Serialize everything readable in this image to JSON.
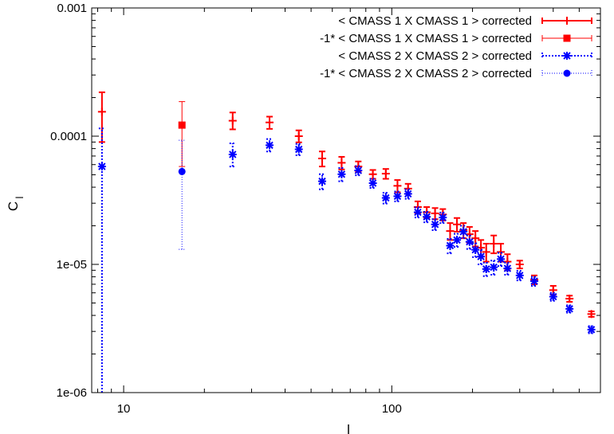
{
  "chart_data": {
    "type": "scatter",
    "title": "",
    "xlabel": "l",
    "ylabel": "C",
    "ylabel_subscript": "l",
    "xscale": "log",
    "yscale": "log",
    "xlim": [
      7.6,
      600
    ],
    "ylim": [
      1e-06,
      0.001
    ],
    "x_ticks": [
      {
        "value": 10,
        "label": "10"
      },
      {
        "value": 100,
        "label": "100"
      }
    ],
    "y_ticks": [
      {
        "value": 1e-06,
        "label": "1e-06"
      },
      {
        "value": 1e-05,
        "label": "1e-05"
      },
      {
        "value": 0.0001,
        "label": "0.0001"
      },
      {
        "value": 0.001,
        "label": "0.001"
      }
    ],
    "legend_position": "top-right",
    "series": [
      {
        "name": "< CMASS 1 X CMASS 1 > corrected",
        "color": "#ff0000",
        "marker": "plus",
        "line": "solid",
        "points": [
          {
            "x": 8.3,
            "y": 0.000155,
            "ylo": 9e-05,
            "yhi": 0.00022
          },
          {
            "x": 25.5,
            "y": 0.000132,
            "ylo": 0.000113,
            "yhi": 0.000153
          },
          {
            "x": 35.0,
            "y": 0.000128,
            "ylo": 0.000114,
            "yhi": 0.000142
          },
          {
            "x": 45.0,
            "y": 0.0001,
            "ylo": 8.95e-05,
            "yhi": 0.000111
          },
          {
            "x": 55.0,
            "y": 6.7e-05,
            "ylo": 5.8e-05,
            "yhi": 7.6e-05
          },
          {
            "x": 65.0,
            "y": 6.2e-05,
            "ylo": 5.5e-05,
            "yhi": 6.9e-05
          },
          {
            "x": 75.0,
            "y": 5.8e-05,
            "ylo": 5.25e-05,
            "yhi": 6.35e-05
          },
          {
            "x": 85.0,
            "y": 5.05e-05,
            "ylo": 4.65e-05,
            "yhi": 5.45e-05
          },
          {
            "x": 95.0,
            "y": 5.1e-05,
            "ylo": 4.65e-05,
            "yhi": 5.55e-05
          },
          {
            "x": 105.0,
            "y": 4.1e-05,
            "ylo": 3.65e-05,
            "yhi": 4.55e-05
          },
          {
            "x": 115.0,
            "y": 3.9e-05,
            "ylo": 3.55e-05,
            "yhi": 4.25e-05
          },
          {
            "x": 125.0,
            "y": 2.8e-05,
            "ylo": 2.5e-05,
            "yhi": 3.1e-05
          },
          {
            "x": 135.0,
            "y": 2.55e-05,
            "ylo": 2.3e-05,
            "yhi": 2.8e-05
          },
          {
            "x": 145.0,
            "y": 2.5e-05,
            "ylo": 2.25e-05,
            "yhi": 2.75e-05
          },
          {
            "x": 155.0,
            "y": 2.45e-05,
            "ylo": 2.2e-05,
            "yhi": 2.7e-05
          },
          {
            "x": 165.0,
            "y": 1.82e-05,
            "ylo": 1.55e-05,
            "yhi": 2.1e-05
          },
          {
            "x": 175.0,
            "y": 2.05e-05,
            "ylo": 1.8e-05,
            "yhi": 2.3e-05
          },
          {
            "x": 185.0,
            "y": 1.85e-05,
            "ylo": 1.6e-05,
            "yhi": 2.1e-05
          },
          {
            "x": 195.0,
            "y": 1.72e-05,
            "ylo": 1.48e-05,
            "yhi": 1.96e-05
          },
          {
            "x": 205.0,
            "y": 1.6e-05,
            "ylo": 1.38e-05,
            "yhi": 1.82e-05
          },
          {
            "x": 215.0,
            "y": 1.35e-05,
            "ylo": 1.15e-05,
            "yhi": 1.55e-05
          },
          {
            "x": 225.0,
            "y": 1.25e-05,
            "ylo": 1.05e-05,
            "yhi": 1.45e-05
          },
          {
            "x": 240.0,
            "y": 1.45e-05,
            "ylo": 1.22e-05,
            "yhi": 1.68e-05
          },
          {
            "x": 255.0,
            "y": 1.25e-05,
            "ylo": 1.05e-05,
            "yhi": 1.45e-05
          },
          {
            "x": 270.0,
            "y": 1.05e-05,
            "ylo": 9e-06,
            "yhi": 1.2e-05
          },
          {
            "x": 300.0,
            "y": 1e-05,
            "ylo": 9.3e-06,
            "yhi": 1.07e-05
          },
          {
            "x": 340.0,
            "y": 7.6e-06,
            "ylo": 7e-06,
            "yhi": 8.2e-06
          },
          {
            "x": 400.0,
            "y": 6.3e-06,
            "ylo": 5.8e-06,
            "yhi": 6.8e-06
          },
          {
            "x": 460.0,
            "y": 5.4e-06,
            "ylo": 5.1e-06,
            "yhi": 5.7e-06
          },
          {
            "x": 555.0,
            "y": 4.1e-06,
            "ylo": 3.9e-06,
            "yhi": 4.3e-06
          }
        ]
      },
      {
        "name": "-1* < CMASS 1 X CMASS 1 > corrected",
        "color": "#ff0000",
        "marker": "square",
        "line": "solid-thin",
        "points": [
          {
            "x": 16.5,
            "y": 0.000122,
            "ylo": 5.8e-05,
            "yhi": 0.000186
          }
        ]
      },
      {
        "name": "< CMASS 2 X CMASS 2 > corrected",
        "color": "#0000ff",
        "marker": "asterisk",
        "line": "dotted",
        "points": [
          {
            "x": 8.3,
            "y": 5.8e-05,
            "ylo": 5e-07,
            "yhi": 0.000115
          },
          {
            "x": 25.5,
            "y": 7.2e-05,
            "ylo": 5.8e-05,
            "yhi": 8.8e-05
          },
          {
            "x": 35.0,
            "y": 8.5e-05,
            "ylo": 7.6e-05,
            "yhi": 9.5e-05
          },
          {
            "x": 45.0,
            "y": 7.9e-05,
            "ylo": 7.1e-05,
            "yhi": 8.7e-05
          },
          {
            "x": 55.0,
            "y": 4.45e-05,
            "ylo": 3.85e-05,
            "yhi": 5.05e-05
          },
          {
            "x": 65.0,
            "y": 5.05e-05,
            "ylo": 4.45e-05,
            "yhi": 5.65e-05
          },
          {
            "x": 75.0,
            "y": 5.4e-05,
            "ylo": 4.95e-05,
            "yhi": 5.85e-05
          },
          {
            "x": 85.0,
            "y": 4.3e-05,
            "ylo": 3.95e-05,
            "yhi": 4.65e-05
          },
          {
            "x": 95.0,
            "y": 3.3e-05,
            "ylo": 2.98e-05,
            "yhi": 3.62e-05
          },
          {
            "x": 105.0,
            "y": 3.4e-05,
            "ylo": 3.1e-05,
            "yhi": 3.7e-05
          },
          {
            "x": 115.0,
            "y": 3.55e-05,
            "ylo": 3.25e-05,
            "yhi": 3.85e-05
          },
          {
            "x": 125.0,
            "y": 2.55e-05,
            "ylo": 2.32e-05,
            "yhi": 2.78e-05
          },
          {
            "x": 135.0,
            "y": 2.35e-05,
            "ylo": 2.13e-05,
            "yhi": 2.57e-05
          },
          {
            "x": 145.0,
            "y": 2.05e-05,
            "ylo": 1.85e-05,
            "yhi": 2.25e-05
          },
          {
            "x": 155.0,
            "y": 2.32e-05,
            "ylo": 2.1e-05,
            "yhi": 2.54e-05
          },
          {
            "x": 165.0,
            "y": 1.4e-05,
            "ylo": 1.22e-05,
            "yhi": 1.58e-05
          },
          {
            "x": 175.0,
            "y": 1.55e-05,
            "ylo": 1.37e-05,
            "yhi": 1.73e-05
          },
          {
            "x": 185.0,
            "y": 1.8e-05,
            "ylo": 1.6e-05,
            "yhi": 2e-05
          },
          {
            "x": 195.0,
            "y": 1.5e-05,
            "ylo": 1.32e-05,
            "yhi": 1.68e-05
          },
          {
            "x": 205.0,
            "y": 1.3e-05,
            "ylo": 1.14e-05,
            "yhi": 1.46e-05
          },
          {
            "x": 215.0,
            "y": 1.15e-05,
            "ylo": 1e-05,
            "yhi": 1.3e-05
          },
          {
            "x": 225.0,
            "y": 9.2e-06,
            "ylo": 8.1e-06,
            "yhi": 1.03e-05
          },
          {
            "x": 240.0,
            "y": 9.5e-06,
            "ylo": 8.3e-06,
            "yhi": 1.07e-05
          },
          {
            "x": 255.0,
            "y": 1.1e-05,
            "ylo": 9.7e-06,
            "yhi": 1.23e-05
          },
          {
            "x": 270.0,
            "y": 9.3e-06,
            "ylo": 8.3e-06,
            "yhi": 1.03e-05
          },
          {
            "x": 300.0,
            "y": 8.2e-06,
            "ylo": 7.5e-06,
            "yhi": 8.9e-06
          },
          {
            "x": 340.0,
            "y": 7.4e-06,
            "ylo": 6.8e-06,
            "yhi": 8e-06
          },
          {
            "x": 400.0,
            "y": 5.6e-06,
            "ylo": 5.2e-06,
            "yhi": 6e-06
          },
          {
            "x": 460.0,
            "y": 4.5e-06,
            "ylo": 4.2e-06,
            "yhi": 4.8e-06
          },
          {
            "x": 555.0,
            "y": 3.1e-06,
            "ylo": 2.9e-06,
            "yhi": 3.3e-06
          }
        ]
      },
      {
        "name": "-1* < CMASS 2 X CMASS 2 > corrected",
        "color": "#0000ff",
        "marker": "circle",
        "line": "dotted-thin",
        "points": [
          {
            "x": 16.5,
            "y": 5.3e-05,
            "ylo": 1.31e-05,
            "yhi": 9.3e-05
          }
        ]
      }
    ]
  }
}
